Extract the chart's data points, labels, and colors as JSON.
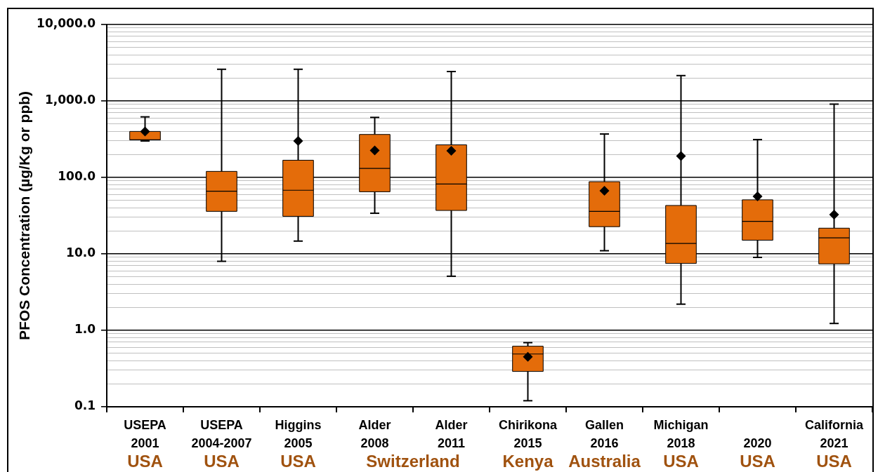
{
  "chart_data": {
    "type": "box",
    "ylabel": "PFOS Concentration (µg/Kg or ppb)",
    "categories": [
      "USEPA 2001",
      "USEPA 2004-2007",
      "Higgins 2005",
      "Alder 2008",
      "Alder 2011",
      "Chirikona 2015",
      "Gallen 2016",
      "Michigan 2018",
      "2020",
      "California 2021"
    ],
    "annotations": [
      "USA",
      "USA",
      "USA",
      "Switzerland",
      "Kenya",
      "Australia",
      "USA",
      "USA",
      "USA"
    ],
    "series": [
      {
        "color": "#e46c0a",
        "boxes": [
          {
            "low": 300,
            "q1": 310,
            "median": 310,
            "q3": 400,
            "high": 620,
            "mean": 400
          },
          {
            "low": 8,
            "q1": 36,
            "median": 66,
            "q3": 120,
            "high": 2600
          },
          {
            "low": 14.7,
            "q1": 31,
            "median": 68,
            "q3": 168,
            "high": 2600,
            "mean": 300
          },
          {
            "low": 34,
            "q1": 65,
            "median": 131,
            "q3": 365,
            "high": 610,
            "mean": 226
          },
          {
            "low": 5.1,
            "q1": 37,
            "median": 82,
            "q3": 267,
            "high": 2430,
            "mean": 223
          },
          {
            "low": 0.12,
            "q1": 0.29,
            "median": 0.49,
            "q3": 0.62,
            "high": 0.69,
            "mean": 0.45
          },
          {
            "low": 11,
            "q1": 22.7,
            "median": 36,
            "q3": 88,
            "high": 370,
            "mean": 67
          },
          {
            "low": 2.2,
            "q1": 7.5,
            "median": 13.7,
            "q3": 43,
            "high": 2150,
            "mean": 190
          },
          {
            "low": 9,
            "q1": 15.1,
            "median": 26.6,
            "q3": 51,
            "high": 313,
            "mean": 56.5
          },
          {
            "low": 1.23,
            "q1": 7.4,
            "median": 16.2,
            "q3": 21.7,
            "high": 910,
            "mean": 32.6
          }
        ]
      }
    ],
    "log": true,
    "ylim": [
      0.1,
      10000
    ],
    "yticks": [
      0.1,
      {
        "value": 0.2,
        "label": null
      },
      {
        "value": 0.3,
        "label": null
      },
      {
        "value": 0.4,
        "label": null
      },
      {
        "value": 0.5,
        "label": null
      },
      {
        "value": 0.6,
        "label": null
      },
      {
        "value": 0.7,
        "label": null
      },
      {
        "value": 0.8,
        "label": null
      },
      {
        "value": 0.9,
        "label": null
      },
      {
        "value": 1,
        "label": "1.0"
      },
      {
        "value": 2,
        "label": null
      },
      {
        "value": 3,
        "label": null
      },
      {
        "value": 4,
        "label": null
      },
      {
        "value": 5,
        "label": null
      },
      {
        "value": 6,
        "label": null
      },
      {
        "value": 7,
        "label": null
      },
      {
        "value": 8,
        "label": null
      },
      {
        "value": 9,
        "label": null
      },
      {
        "value": 10,
        "label": "10.0"
      },
      {
        "value": 20,
        "label": null
      },
      {
        "value": 30,
        "label": null
      },
      {
        "value": 40,
        "label": null
      },
      {
        "value": 50,
        "label": null
      },
      {
        "value": 60,
        "label": null
      },
      {
        "value": 70,
        "label": null
      },
      {
        "value": 80,
        "label": null
      },
      {
        "value": 90,
        "label": null
      },
      {
        "value": 100,
        "label": "100.0"
      },
      {
        "value": 200,
        "label": null
      },
      {
        "value": 300,
        "label": null
      },
      {
        "value": 400,
        "label": null
      },
      {
        "value": 500,
        "label": null
      },
      {
        "value": 600,
        "label": null
      },
      {
        "value": 700,
        "label": null
      },
      {
        "value": 800,
        "label": null
      },
      {
        "value": 900,
        "label": null
      },
      {
        "value": 1000,
        "label": "1,000.0"
      },
      {
        "value": 2000,
        "label": null
      },
      {
        "value": 3000,
        "label": null
      },
      {
        "value": 4000,
        "label": null
      },
      {
        "value": 5000,
        "label": null
      },
      {
        "value": 6000,
        "label": null
      },
      {
        "value": 7000,
        "label": null
      },
      {
        "value": 8000,
        "label": null
      },
      {
        "value": 9000,
        "label": null
      },
      {
        "value": 10000,
        "label": "10,000.0"
      }
    ],
    "grid": "y",
    "marker": "diamond"
  }
}
